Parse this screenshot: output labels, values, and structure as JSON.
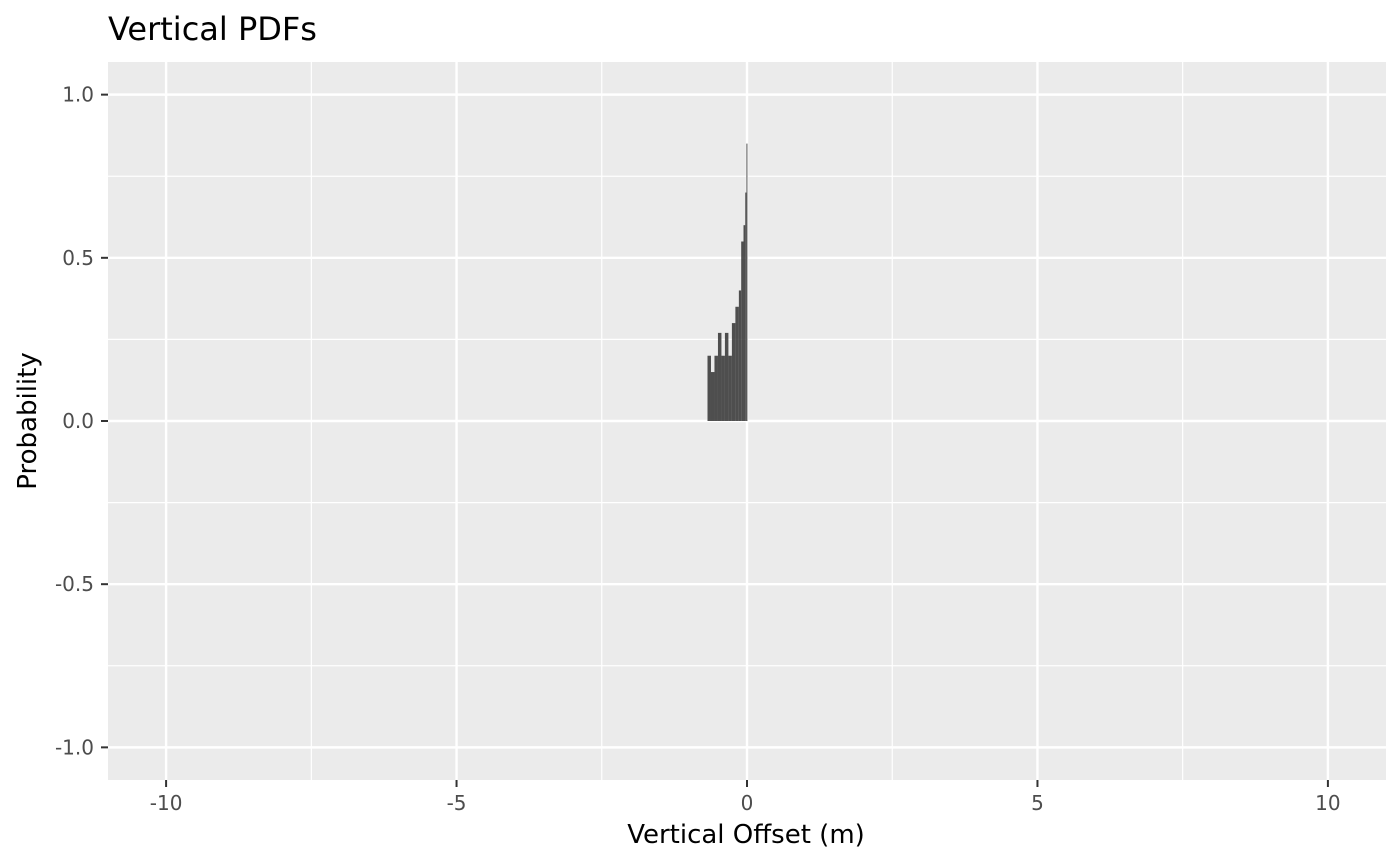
{
  "chart_data": {
    "type": "bar",
    "title": "Vertical PDFs",
    "xlabel": "Vertical Offset (m)",
    "ylabel": "Probability",
    "xlim": [
      -11,
      11
    ],
    "ylim": [
      -1.1,
      1.1
    ],
    "x_ticks": [
      -10,
      -5,
      0,
      5,
      10
    ],
    "x_tick_labels": [
      "-10",
      "-5",
      "0",
      "5",
      "10"
    ],
    "y_ticks": [
      1.0,
      0.5,
      0.0,
      -0.5,
      -1.0
    ],
    "y_tick_labels": [
      "1.0",
      "0.5",
      "0.0",
      "-0.5",
      "-1.0"
    ],
    "x_minor_ticks": [
      -7.5,
      -2.5,
      2.5,
      7.5
    ],
    "y_minor_ticks": [
      0.75,
      0.25,
      -0.25,
      -0.75
    ],
    "grid": true,
    "legend": "none",
    "series": [
      {
        "x": [
          -0.68,
          -0.62,
          -0.56,
          -0.5,
          -0.44,
          -0.38,
          -0.32,
          -0.26,
          -0.2,
          -0.14,
          -0.1,
          -0.06,
          -0.03,
          -0.01
        ],
        "values": [
          0.2,
          0.15,
          0.2,
          0.27,
          0.2,
          0.27,
          0.2,
          0.3,
          0.35,
          0.4,
          0.55,
          0.6,
          0.7,
          0.85
        ]
      }
    ],
    "colors": {
      "panel": "#ebebeb",
      "grid": "#ffffff",
      "bars": "#333333"
    }
  }
}
